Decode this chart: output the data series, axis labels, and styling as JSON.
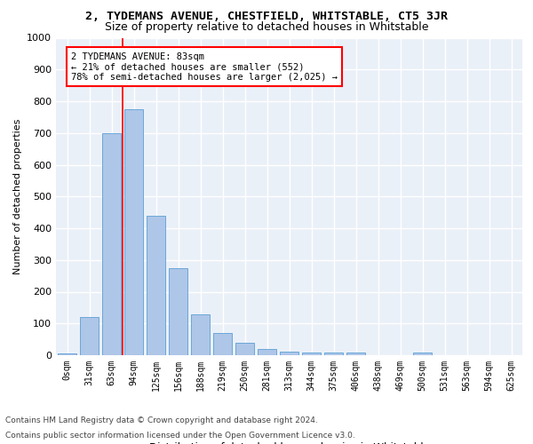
{
  "title": "2, TYDEMANS AVENUE, CHESTFIELD, WHITSTABLE, CT5 3JR",
  "subtitle": "Size of property relative to detached houses in Whitstable",
  "xlabel": "Distribution of detached houses by size in Whitstable",
  "ylabel": "Number of detached properties",
  "categories": [
    "0sqm",
    "31sqm",
    "63sqm",
    "94sqm",
    "125sqm",
    "156sqm",
    "188sqm",
    "219sqm",
    "250sqm",
    "281sqm",
    "313sqm",
    "344sqm",
    "375sqm",
    "406sqm",
    "438sqm",
    "469sqm",
    "500sqm",
    "531sqm",
    "563sqm",
    "594sqm",
    "625sqm"
  ],
  "values": [
    5,
    120,
    700,
    775,
    440,
    275,
    130,
    70,
    40,
    20,
    12,
    9,
    9,
    8,
    0,
    0,
    8,
    0,
    0,
    0,
    0
  ],
  "bar_color": "#aec6e8",
  "bar_edge_color": "#5a9fd4",
  "property_name": "2 TYDEMANS AVENUE: 83sqm",
  "annotation_line": "← 21% of detached houses are smaller (552)",
  "annotation_line2": "78% of semi-detached houses are larger (2,025) →",
  "vline_x": 2.5,
  "ylim": [
    0,
    1000
  ],
  "yticks": [
    0,
    100,
    200,
    300,
    400,
    500,
    600,
    700,
    800,
    900,
    1000
  ],
  "background_color": "#eaf0f8",
  "grid_color": "#ffffff",
  "footer1": "Contains HM Land Registry data © Crown copyright and database right 2024.",
  "footer2": "Contains public sector information licensed under the Open Government Licence v3.0."
}
